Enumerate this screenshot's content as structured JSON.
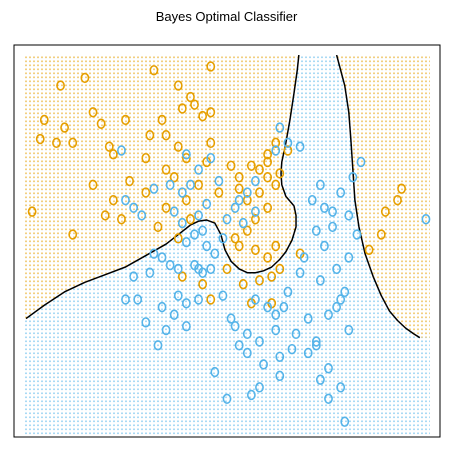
{
  "chart_data": {
    "type": "scatter",
    "title": "Bayes Optimal Classifier",
    "xlabel": "",
    "ylabel": "",
    "xlim": [
      0,
      100
    ],
    "ylim": [
      0,
      100
    ],
    "grid": false,
    "legend": "none",
    "colors": {
      "orange": "#E69F00",
      "blue": "#56B4E9",
      "boundary": "#000000"
    },
    "regions": [
      {
        "class": "orange",
        "color": "#E69F00",
        "pattern": "dotted-grid"
      },
      {
        "class": "blue",
        "color": "#56B4E9",
        "pattern": "dotted-grid"
      }
    ],
    "decision_boundary": [
      [
        [
          0.5,
          31
        ],
        [
          5,
          34.5
        ],
        [
          10,
          38
        ],
        [
          15,
          40.5
        ],
        [
          20,
          42.5
        ],
        [
          25,
          44.5
        ],
        [
          30,
          47.5
        ],
        [
          35,
          50.5
        ],
        [
          38,
          53
        ],
        [
          41,
          55.5
        ],
        [
          43,
          56.5
        ],
        [
          45,
          56.8
        ],
        [
          47,
          56
        ],
        [
          48.5,
          53
        ],
        [
          49.5,
          49
        ],
        [
          51,
          46
        ],
        [
          53,
          44
        ],
        [
          55,
          43
        ],
        [
          57,
          43
        ],
        [
          59,
          43.5
        ],
        [
          61,
          44.5
        ],
        [
          63,
          46.5
        ],
        [
          64.5,
          48.5
        ],
        [
          66,
          51.5
        ],
        [
          67,
          55
        ],
        [
          67,
          58
        ],
        [
          66.5,
          60.5
        ],
        [
          64.5,
          63
        ],
        [
          63.5,
          66
        ],
        [
          63.3,
          69
        ],
        [
          63.5,
          72
        ],
        [
          64.5,
          77
        ],
        [
          65.5,
          83
        ],
        [
          66.5,
          90
        ],
        [
          67.3,
          96
        ],
        [
          67.7,
          100
        ]
      ],
      [
        [
          77,
          100
        ],
        [
          79,
          92
        ],
        [
          80,
          85
        ],
        [
          80.5,
          78
        ],
        [
          81,
          70
        ],
        [
          81.5,
          62
        ],
        [
          82.5,
          55
        ],
        [
          84,
          48
        ],
        [
          86,
          42
        ],
        [
          88,
          37
        ],
        [
          90,
          33
        ],
        [
          92,
          30.5
        ],
        [
          94,
          28.5
        ],
        [
          96,
          27
        ],
        [
          97.5,
          26
        ]
      ]
    ],
    "series": [
      {
        "name": "",
        "color": "#E69F00",
        "class": "orange",
        "points": [
          [
            9,
            92
          ],
          [
            15,
            94
          ],
          [
            32,
            96
          ],
          [
            38,
            92
          ],
          [
            41,
            89
          ],
          [
            46,
            97
          ],
          [
            17,
            85
          ],
          [
            19,
            82
          ],
          [
            34,
            83
          ],
          [
            39,
            86
          ],
          [
            42,
            87
          ],
          [
            44,
            84
          ],
          [
            46,
            85
          ],
          [
            5,
            83
          ],
          [
            4,
            78
          ],
          [
            8,
            77
          ],
          [
            10,
            81
          ],
          [
            12,
            77
          ],
          [
            21,
            76
          ],
          [
            25,
            83
          ],
          [
            22,
            74
          ],
          [
            31,
            79
          ],
          [
            35,
            79
          ],
          [
            38,
            76
          ],
          [
            40,
            73
          ],
          [
            46,
            77
          ],
          [
            30,
            73
          ],
          [
            35,
            70
          ],
          [
            37,
            68
          ],
          [
            43,
            66
          ],
          [
            45,
            72
          ],
          [
            51,
            71
          ],
          [
            53,
            68
          ],
          [
            56,
            71
          ],
          [
            58,
            70
          ],
          [
            60,
            72
          ],
          [
            60,
            68
          ],
          [
            62,
            66
          ],
          [
            63,
            69
          ],
          [
            60,
            74
          ],
          [
            62,
            77
          ],
          [
            65,
            75
          ],
          [
            17,
            66
          ],
          [
            22,
            62
          ],
          [
            26,
            67
          ],
          [
            30,
            64
          ],
          [
            35,
            60
          ],
          [
            40,
            62
          ],
          [
            41,
            57
          ],
          [
            48,
            64
          ],
          [
            53,
            65
          ],
          [
            55,
            62
          ],
          [
            58,
            64
          ],
          [
            60,
            60
          ],
          [
            57,
            57
          ],
          [
            55,
            54
          ],
          [
            52,
            52
          ],
          [
            53,
            50
          ],
          [
            57,
            49
          ],
          [
            60,
            47
          ],
          [
            62,
            50
          ],
          [
            58,
            41
          ],
          [
            61,
            42
          ],
          [
            63,
            44
          ],
          [
            68,
            48
          ],
          [
            50,
            44
          ],
          [
            54,
            40
          ],
          [
            56,
            35
          ],
          [
            44,
            40
          ],
          [
            46,
            36
          ],
          [
            61,
            35
          ],
          [
            39,
            42
          ],
          [
            2,
            59
          ],
          [
            12,
            53
          ],
          [
            20,
            58
          ],
          [
            24,
            57
          ],
          [
            33,
            55
          ],
          [
            38,
            52
          ],
          [
            85,
            49
          ],
          [
            88,
            53
          ],
          [
            89,
            59
          ],
          [
            92,
            62
          ],
          [
            93,
            65
          ]
        ],
        "marker": "circle-outline"
      },
      {
        "name": "",
        "color": "#56B4E9",
        "class": "blue",
        "points": [
          [
            24,
            75
          ],
          [
            40,
            74
          ],
          [
            43,
            70
          ],
          [
            46,
            73
          ],
          [
            39,
            64
          ],
          [
            41,
            66
          ],
          [
            48,
            67
          ],
          [
            25,
            62
          ],
          [
            27,
            60
          ],
          [
            29,
            58
          ],
          [
            32,
            65
          ],
          [
            36,
            66
          ],
          [
            37,
            59
          ],
          [
            39,
            56
          ],
          [
            43,
            58
          ],
          [
            45,
            61
          ],
          [
            44,
            54
          ],
          [
            45,
            50
          ],
          [
            47,
            48
          ],
          [
            49,
            52
          ],
          [
            50,
            57
          ],
          [
            52,
            60
          ],
          [
            54,
            56
          ],
          [
            53,
            62
          ],
          [
            55,
            64
          ],
          [
            57,
            67
          ],
          [
            57,
            59
          ],
          [
            62,
            75
          ],
          [
            65,
            77
          ],
          [
            63,
            81
          ],
          [
            68,
            76
          ],
          [
            71,
            62
          ],
          [
            73,
            66
          ],
          [
            74,
            60
          ],
          [
            76,
            55
          ],
          [
            76,
            59
          ],
          [
            78,
            64
          ],
          [
            80,
            58
          ],
          [
            81,
            68
          ],
          [
            83,
            72
          ],
          [
            82,
            53
          ],
          [
            99,
            57
          ],
          [
            72,
            54
          ],
          [
            74,
            50
          ],
          [
            69,
            47
          ],
          [
            68,
            43
          ],
          [
            73,
            41
          ],
          [
            77,
            44
          ],
          [
            79,
            38
          ],
          [
            80,
            47
          ],
          [
            40,
            51
          ],
          [
            42,
            53
          ],
          [
            32,
            48
          ],
          [
            34,
            47
          ],
          [
            36,
            45
          ],
          [
            38,
            44
          ],
          [
            42,
            45
          ],
          [
            44,
            43
          ],
          [
            46,
            44
          ],
          [
            43,
            36
          ],
          [
            40,
            35
          ],
          [
            37,
            32
          ],
          [
            34,
            34
          ],
          [
            30,
            30
          ],
          [
            28,
            36
          ],
          [
            25,
            36
          ],
          [
            27,
            42
          ],
          [
            31,
            43
          ],
          [
            38,
            37
          ],
          [
            49,
            37
          ],
          [
            51,
            31
          ],
          [
            57,
            36
          ],
          [
            60,
            34
          ],
          [
            62,
            32
          ],
          [
            64,
            34
          ],
          [
            70,
            31
          ],
          [
            75,
            32
          ],
          [
            77,
            34
          ],
          [
            72,
            25
          ],
          [
            67,
            27
          ],
          [
            62,
            28
          ],
          [
            58,
            25
          ],
          [
            55,
            27
          ],
          [
            52,
            29
          ],
          [
            53,
            24
          ],
          [
            55,
            22
          ],
          [
            59,
            19
          ],
          [
            63,
            21
          ],
          [
            66,
            23
          ],
          [
            70,
            22
          ],
          [
            72,
            24
          ],
          [
            75,
            18
          ],
          [
            73,
            15
          ],
          [
            78,
            13
          ],
          [
            75,
            10
          ],
          [
            47,
            17
          ],
          [
            50,
            10
          ],
          [
            56,
            11
          ],
          [
            43,
            44
          ],
          [
            78,
            36
          ],
          [
            33,
            24
          ],
          [
            65,
            38
          ],
          [
            40,
            29
          ],
          [
            35,
            28
          ],
          [
            58,
            13
          ],
          [
            63,
            16
          ],
          [
            80,
            28
          ],
          [
            79,
            4
          ]
        ],
        "marker": "circle-outline"
      }
    ]
  }
}
